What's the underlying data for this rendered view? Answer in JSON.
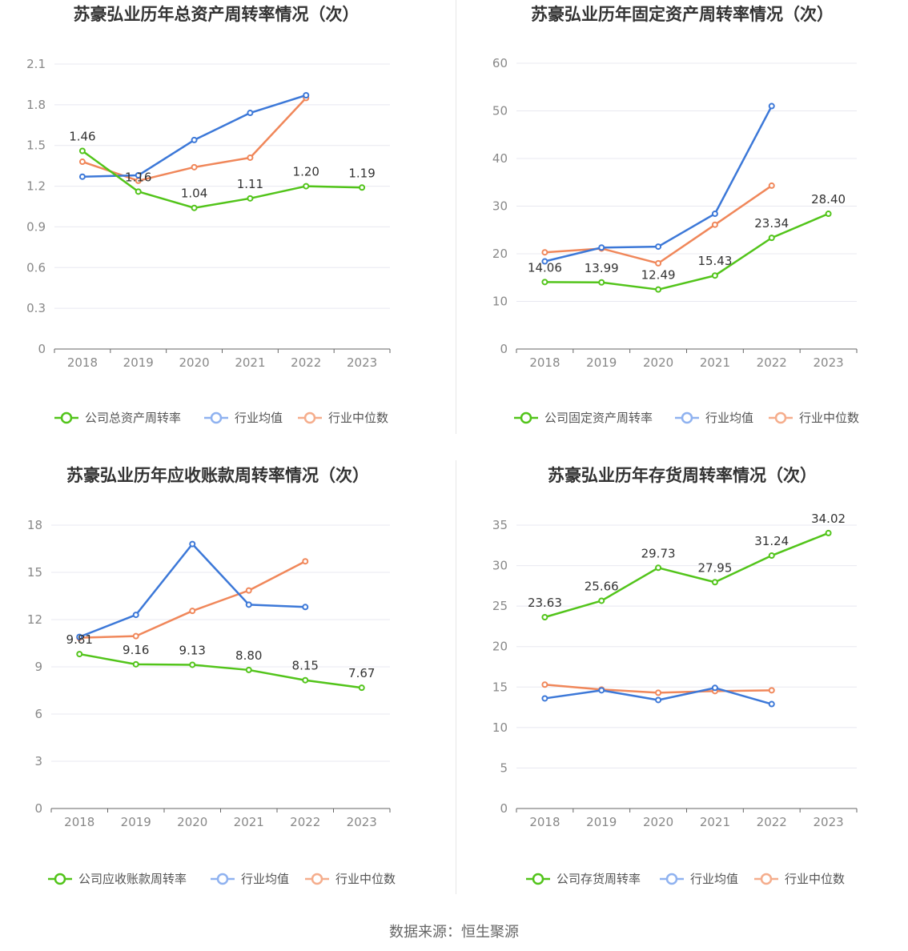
{
  "source_text": "数据来源：恒生聚源",
  "colors": {
    "company": "#52c41a",
    "avg": "#3c78d8",
    "median": "#f0875a",
    "grid": "#e8e8f0",
    "axis": "#666666"
  },
  "chart_data": [
    {
      "type": "line",
      "title": "苏豪弘业历年总资产周转率情况（次）",
      "categories": [
        "2018",
        "2019",
        "2020",
        "2021",
        "2022",
        "2023"
      ],
      "yticks": [
        "0",
        "0.3",
        "0.6",
        "0.9",
        "1.2",
        "1.5",
        "1.8",
        "2.1"
      ],
      "ylim": [
        0,
        2.1
      ],
      "legend": [
        "公司总资产周转率",
        "行业均值",
        "行业中位数"
      ],
      "series": [
        {
          "name": "公司总资产周转率",
          "values": [
            1.46,
            1.16,
            1.04,
            1.11,
            1.2,
            1.19
          ],
          "labels": [
            "1.46",
            "1.16",
            "1.04",
            "1.11",
            "1.20",
            "1.19"
          ]
        },
        {
          "name": "行业均值",
          "values": [
            1.27,
            1.28,
            1.54,
            1.74,
            1.87,
            null
          ]
        },
        {
          "name": "行业中位数",
          "values": [
            1.38,
            1.24,
            1.34,
            1.41,
            1.85,
            null
          ]
        }
      ]
    },
    {
      "type": "line",
      "title": "苏豪弘业历年固定资产周转率情况（次）",
      "categories": [
        "2018",
        "2019",
        "2020",
        "2021",
        "2022",
        "2023"
      ],
      "yticks": [
        "0",
        "10",
        "20",
        "30",
        "40",
        "50",
        "60"
      ],
      "ylim": [
        0,
        60
      ],
      "legend": [
        "公司固定资产周转率",
        "行业均值",
        "行业中位数"
      ],
      "series": [
        {
          "name": "公司固定资产周转率",
          "values": [
            14.06,
            13.99,
            12.49,
            15.43,
            23.34,
            28.4
          ],
          "labels": [
            "14.06",
            "13.99",
            "12.49",
            "15.43",
            "23.34",
            "28.40"
          ]
        },
        {
          "name": "行业均值",
          "values": [
            18.4,
            21.3,
            21.5,
            28.4,
            51.0,
            null
          ]
        },
        {
          "name": "行业中位数",
          "values": [
            20.3,
            21.1,
            18.0,
            26.1,
            34.3,
            null
          ]
        }
      ]
    },
    {
      "type": "line",
      "title": "苏豪弘业历年应收账款周转率情况（次）",
      "categories": [
        "2018",
        "2019",
        "2020",
        "2021",
        "2022",
        "2023"
      ],
      "yticks": [
        "0",
        "3",
        "6",
        "9",
        "12",
        "15",
        "18"
      ],
      "ylim": [
        0,
        18
      ],
      "legend": [
        "公司应收账款周转率",
        "行业均值",
        "行业中位数"
      ],
      "series": [
        {
          "name": "公司应收账款周转率",
          "values": [
            9.81,
            9.16,
            9.13,
            8.8,
            8.15,
            7.67
          ],
          "labels": [
            "9.81",
            "9.16",
            "9.13",
            "8.80",
            "8.15",
            "7.67"
          ]
        },
        {
          "name": "行业均值",
          "values": [
            10.9,
            12.3,
            16.8,
            12.95,
            12.8,
            null
          ]
        },
        {
          "name": "行业中位数",
          "values": [
            10.85,
            10.95,
            12.55,
            13.85,
            15.7,
            null
          ]
        }
      ]
    },
    {
      "type": "line",
      "title": "苏豪弘业历年存货周转率情况（次）",
      "categories": [
        "2018",
        "2019",
        "2020",
        "2021",
        "2022",
        "2023"
      ],
      "yticks": [
        "0",
        "5",
        "10",
        "15",
        "20",
        "25",
        "30",
        "35"
      ],
      "ylim": [
        0,
        35
      ],
      "legend": [
        "公司存货周转率",
        "行业均值",
        "行业中位数"
      ],
      "series": [
        {
          "name": "公司存货周转率",
          "values": [
            23.63,
            25.66,
            29.73,
            27.95,
            31.24,
            34.02
          ],
          "labels": [
            "23.63",
            "25.66",
            "29.73",
            "27.95",
            "31.24",
            "34.02"
          ]
        },
        {
          "name": "行业均值",
          "values": [
            13.6,
            14.6,
            13.4,
            14.9,
            12.9,
            null
          ]
        },
        {
          "name": "行业中位数",
          "values": [
            15.3,
            14.7,
            14.3,
            14.5,
            14.6,
            null
          ]
        }
      ]
    }
  ]
}
